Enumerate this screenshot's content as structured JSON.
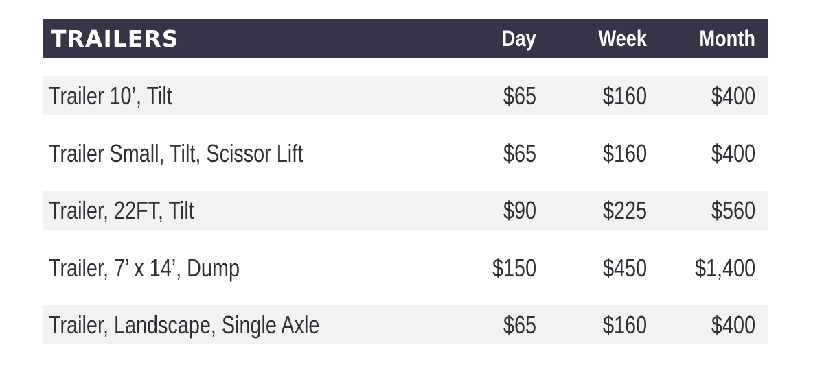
{
  "header": {
    "title": "TRAILERS",
    "columns": [
      "Day",
      "Week",
      "Month"
    ]
  },
  "rows": [
    {
      "name": "Trailer 10’, Tilt",
      "day": "$65",
      "week": "$160",
      "month": "$400"
    },
    {
      "name": "Trailer Small, Tilt, Scissor Lift",
      "day": "$65",
      "week": "$160",
      "month": "$400"
    },
    {
      "name": "Trailer, 22FT, Tilt",
      "day": "$90",
      "week": "$225",
      "month": "$560"
    },
    {
      "name": "Trailer, 7’ x 14’, Dump",
      "day": "$150",
      "week": "$450",
      "month": "$1,400"
    },
    {
      "name": "Trailer, Landscape, Single Axle",
      "day": "$65",
      "week": "$160",
      "month": "$400"
    }
  ],
  "colors": {
    "header_bg": "#373448",
    "header_text": "#ffffff",
    "row_shade": "#f2f2f2",
    "body_text": "#2f2f35"
  }
}
